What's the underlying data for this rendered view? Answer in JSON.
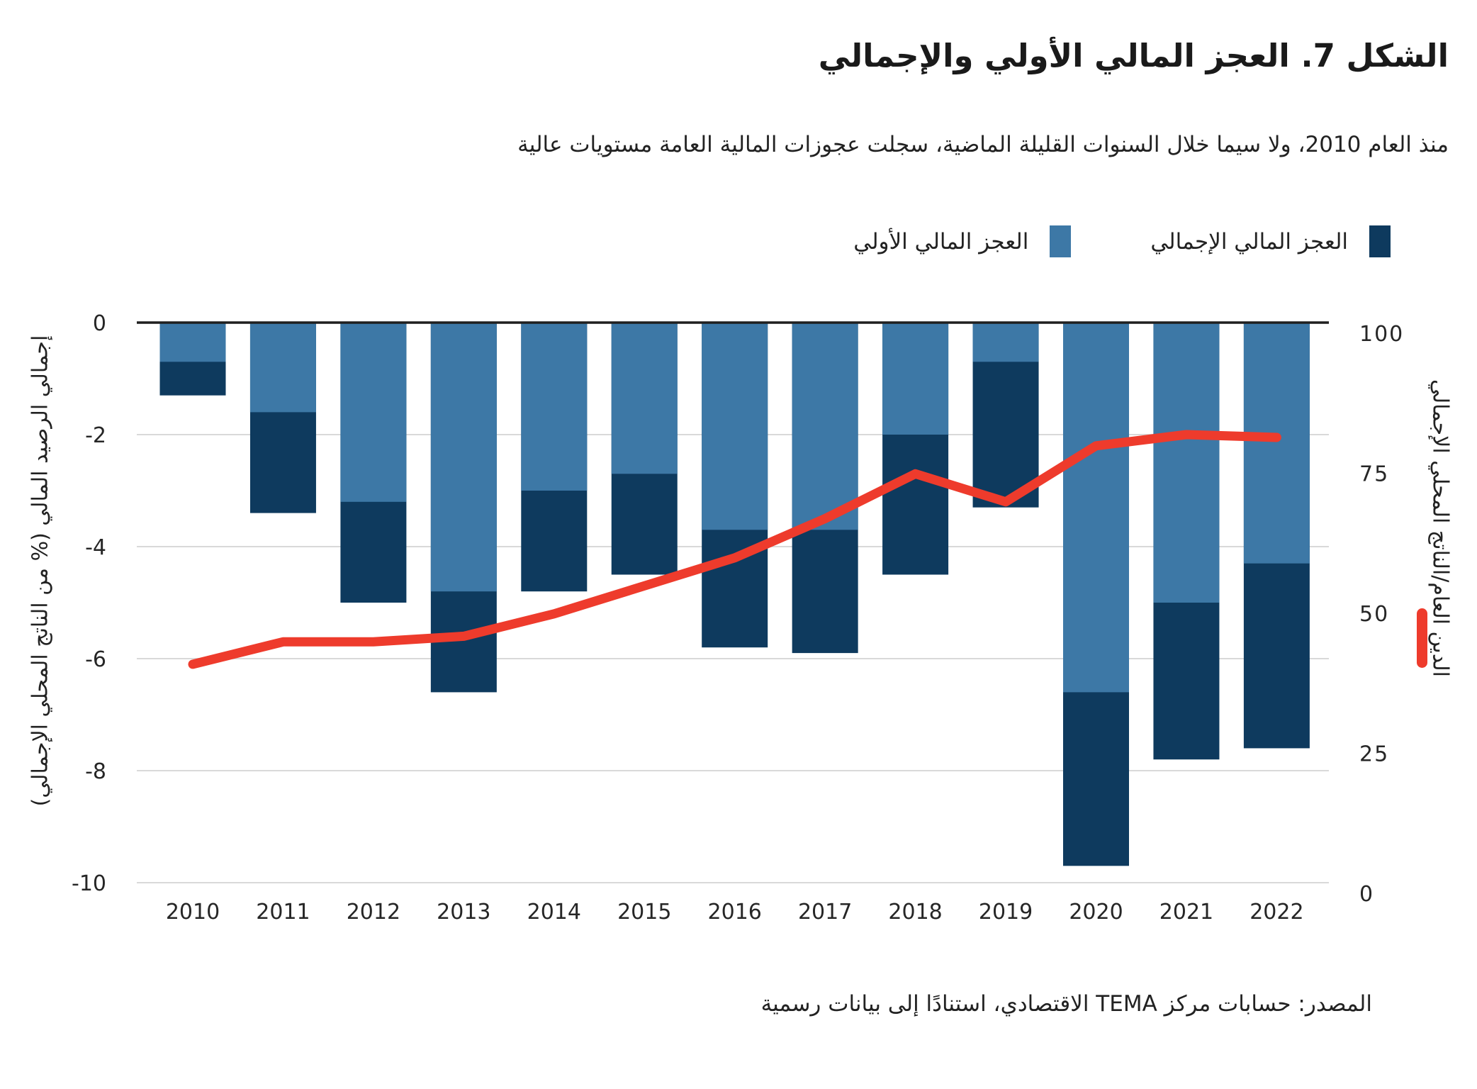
{
  "header": {
    "title": "الشكل 7. العجز المالي الأولي والإجمالي",
    "subtitle": "منذ العام 2010، ولا سيما خلال السنوات القليلة الماضية، سجلت عجوزات المالية العامة مستويات عالية"
  },
  "legend": {
    "total_label": "العجز المالي الإجمالي",
    "primary_label": "العجز المالي الأولي"
  },
  "axes": {
    "left_label": "إجمالي الرصيد المالي (% من الناتج المحلي الإجمالي)",
    "right_label": "الدين العام/الناتج المحلي الإجمالي"
  },
  "footer": {
    "source": "المصدر: حسابات مركز TEMA الاقتصادي، استنادًا إلى بيانات رسمية"
  },
  "colors": {
    "primary_bar": "#3D78A6",
    "total_bar": "#0E3A5E",
    "debt_line": "#EE3B2C",
    "grid": "#D9D9D9",
    "zero_line": "#1F1F1F",
    "tick_text": "#262626"
  },
  "chart_data": {
    "type": "bar",
    "title": "الشكل 7. العجز المالي الأولي والإجمالي",
    "categories": [
      "2010",
      "2011",
      "2012",
      "2013",
      "2014",
      "2015",
      "2016",
      "2017",
      "2018",
      "2019",
      "2020",
      "2021",
      "2022"
    ],
    "series": [
      {
        "name": "العجز المالي الأولي",
        "type": "bar",
        "axis": "left",
        "values": [
          -0.7,
          -1.6,
          -3.2,
          -4.8,
          -3.0,
          -2.7,
          -3.7,
          -3.7,
          -2.0,
          -0.7,
          -6.6,
          -5.0,
          -4.3
        ]
      },
      {
        "name": "العجز المالي الإجمالي",
        "type": "bar",
        "axis": "left",
        "values": [
          -1.3,
          -3.4,
          -5.0,
          -6.6,
          -4.8,
          -4.5,
          -5.8,
          -5.9,
          -4.5,
          -3.3,
          -9.7,
          -7.8,
          -7.6
        ]
      },
      {
        "name": "الدين العام/الناتج المحلي الإجمالي",
        "type": "line",
        "axis": "right",
        "values": [
          39,
          43,
          43,
          44,
          48,
          53,
          58,
          65,
          73,
          68,
          78,
          80,
          79.5
        ]
      }
    ],
    "left_axis": {
      "label": "إجمالي الرصيد المالي (% من الناتج المحلي الإجمالي)",
      "range": [
        -10,
        0
      ],
      "ticks": [
        0,
        -2,
        -4,
        -6,
        -8,
        -10
      ]
    },
    "right_axis": {
      "label": "الدين العام/الناتج المحلي الإجمالي",
      "range": [
        0,
        100
      ],
      "ticks": [
        100,
        75,
        50,
        25,
        0
      ]
    },
    "grid": true,
    "legend_position": "top-right"
  }
}
